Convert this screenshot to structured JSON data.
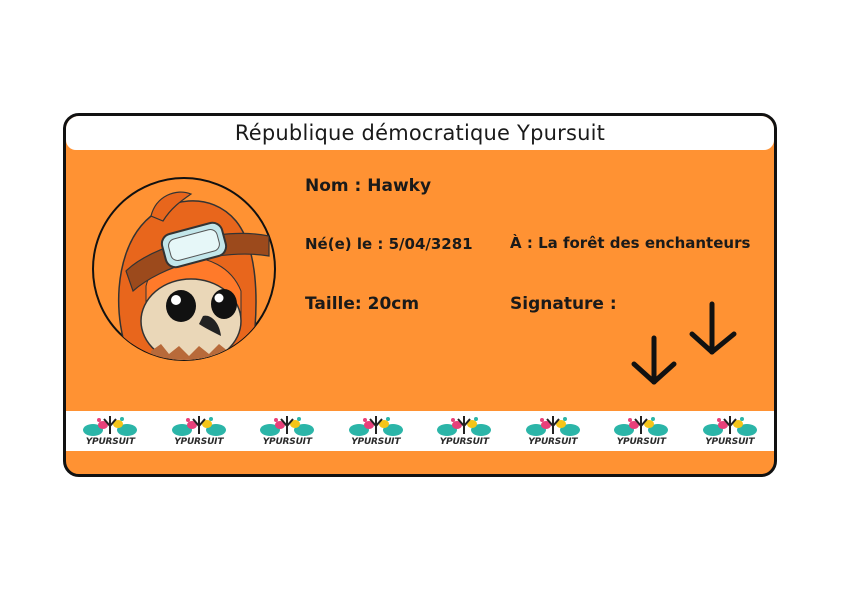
{
  "card": {
    "title": "République démocratique Ypursuit",
    "nom_label": "Nom : ",
    "nom_value": "Hawky",
    "ne_label": "Né(e) le : ",
    "ne_value": "5/04/3281",
    "a_label": "À : ",
    "a_value": "La forêt des enchanteurs",
    "taille_label": "Taille: ",
    "taille_value": "20cm",
    "signature_label": "Signature :"
  },
  "banner": {
    "logo_text": "YPURSUIT",
    "logo_count": 8
  },
  "colors": {
    "card_orange": "#ff9233",
    "border": "#111111",
    "teal": "#2bb5a8",
    "pink": "#e8407a",
    "yellow": "#f5c518"
  },
  "icons": {
    "portrait": "owl-aviator-portrait-icon",
    "signature": "bird-footprint-icon",
    "logo": "ypursuit-logo-icon"
  }
}
